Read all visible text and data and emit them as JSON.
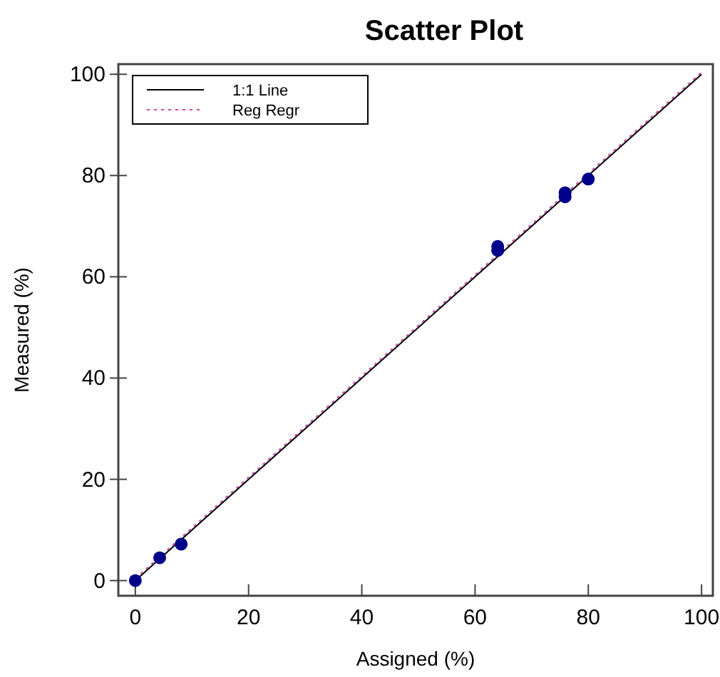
{
  "chart_data": {
    "type": "scatter",
    "title": "Scatter Plot",
    "xlabel": "Assigned (%)",
    "ylabel": "Measured (%)",
    "xlim": [
      -3,
      102
    ],
    "ylim": [
      -3,
      102
    ],
    "xticks": [
      0,
      20,
      40,
      60,
      80,
      100
    ],
    "yticks": [
      0,
      20,
      40,
      60,
      80,
      100
    ],
    "legend": "top left",
    "grid": false,
    "series": [
      {
        "name": "1:1 Line",
        "type": "line",
        "color": "#000000",
        "line_style": "solid",
        "x": [
          0,
          100
        ],
        "values": [
          0,
          100
        ]
      },
      {
        "name": "Reg Regr",
        "type": "line",
        "color": "#cc44aa",
        "line_style": "dotted",
        "x": [
          0,
          100
        ],
        "values": [
          0.4,
          100.4
        ]
      },
      {
        "color": "#00008b",
        "marker": "circle",
        "x": [
          0,
          4.3,
          8.1,
          64,
          64,
          75.9,
          75.9,
          80
        ],
        "values": [
          0,
          4.5,
          7.2,
          65.2,
          66,
          75.8,
          76.6,
          79.3
        ]
      }
    ]
  }
}
